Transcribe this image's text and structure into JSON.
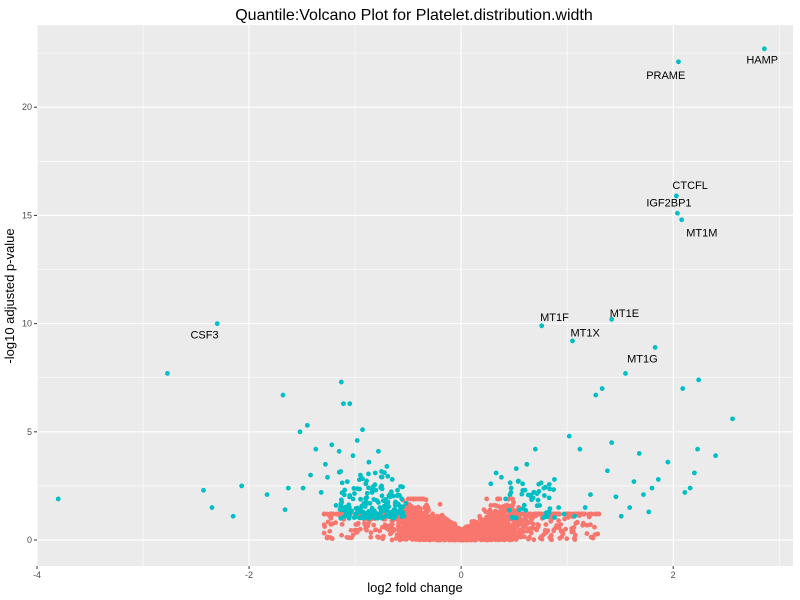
{
  "chart_data": {
    "type": "scatter",
    "title": "Quantile:Volcano Plot for Platelet.distribution.width",
    "xlabel": "log2 fold change",
    "ylabel": "-log10 adjusted p-value",
    "xlim": [
      -4.0,
      3.13
    ],
    "ylim": [
      -1.2,
      23.8
    ],
    "x_ticks": [
      -4,
      -2,
      0,
      2
    ],
    "x_tick_labels": [
      "-4",
      "-2",
      "0",
      "2"
    ],
    "y_ticks": [
      0,
      5,
      10,
      15,
      20
    ],
    "y_tick_labels": [
      "0",
      "5",
      "10",
      "15",
      "20"
    ],
    "grid": true,
    "legend": "none",
    "colors": {
      "significant": "#00BFC4",
      "not_significant": "#F8766D",
      "panel_background": "#EBEBEB",
      "grid": "#FFFFFF"
    },
    "labeled_points": [
      {
        "gene": "HAMP",
        "x": 2.86,
        "y": 22.7,
        "label_dx": -0.02,
        "label_dy": -0.5
      },
      {
        "gene": "PRAME",
        "x": 2.05,
        "y": 22.1,
        "label_dx": -0.12,
        "label_dy": -0.6
      },
      {
        "gene": "CTCFL",
        "x": 2.03,
        "y": 15.9,
        "label_dx": 0.13,
        "label_dy": 0.5
      },
      {
        "gene": "IGF2BP1",
        "x": 2.04,
        "y": 15.1,
        "label_dx": -0.08,
        "label_dy": 0.5
      },
      {
        "gene": "MT1M",
        "x": 2.08,
        "y": 14.8,
        "label_dx": 0.19,
        "label_dy": -0.6
      },
      {
        "gene": "CSF3",
        "x": -2.3,
        "y": 10.0,
        "label_dx": -0.12,
        "label_dy": -0.5
      },
      {
        "gene": "MT1F",
        "x": 0.76,
        "y": 9.9,
        "label_dx": 0.12,
        "label_dy": 0.4
      },
      {
        "gene": "MT1E",
        "x": 1.42,
        "y": 10.2,
        "label_dx": 0.12,
        "label_dy": 0.3
      },
      {
        "gene": "MT1X",
        "x": 1.05,
        "y": 9.2,
        "label_dx": 0.12,
        "label_dy": 0.4
      },
      {
        "gene": "MT1G",
        "x": 1.83,
        "y": 8.9,
        "label_dx": -0.12,
        "label_dy": -0.5
      }
    ],
    "significant_points": [
      {
        "x": -3.8,
        "y": 1.9
      },
      {
        "x": -2.77,
        "y": 7.7
      },
      {
        "x": -2.43,
        "y": 2.3
      },
      {
        "x": -2.35,
        "y": 1.5
      },
      {
        "x": -2.15,
        "y": 1.1
      },
      {
        "x": -2.07,
        "y": 2.5
      },
      {
        "x": -1.83,
        "y": 2.1
      },
      {
        "x": -1.68,
        "y": 6.7
      },
      {
        "x": -1.66,
        "y": 1.4
      },
      {
        "x": -1.63,
        "y": 2.4
      },
      {
        "x": -1.52,
        "y": 5.0
      },
      {
        "x": -1.49,
        "y": 2.4
      },
      {
        "x": -1.45,
        "y": 5.3
      },
      {
        "x": -1.42,
        "y": 3.0
      },
      {
        "x": -1.37,
        "y": 4.2
      },
      {
        "x": -1.32,
        "y": 2.2
      },
      {
        "x": -1.28,
        "y": 3.5
      },
      {
        "x": -1.26,
        "y": 2.9
      },
      {
        "x": -1.22,
        "y": 4.4
      },
      {
        "x": -1.18,
        "y": 1.6
      },
      {
        "x": -1.15,
        "y": 4.1
      },
      {
        "x": -1.13,
        "y": 7.3
      },
      {
        "x": -1.11,
        "y": 6.3
      },
      {
        "x": -1.05,
        "y": 6.3
      },
      {
        "x": -1.02,
        "y": 3.9
      },
      {
        "x": -0.98,
        "y": 4.6
      },
      {
        "x": -0.95,
        "y": 3.0
      },
      {
        "x": -0.93,
        "y": 5.1
      },
      {
        "x": -0.9,
        "y": 2.6
      },
      {
        "x": -0.87,
        "y": 3.6
      },
      {
        "x": -0.84,
        "y": 2.2
      },
      {
        "x": -0.81,
        "y": 3.1
      },
      {
        "x": -0.78,
        "y": 4.1
      },
      {
        "x": -0.75,
        "y": 2.5
      },
      {
        "x": -0.72,
        "y": 1.8
      },
      {
        "x": -0.7,
        "y": 3.4
      },
      {
        "x": -0.67,
        "y": 2.0
      },
      {
        "x": -0.65,
        "y": 2.8
      },
      {
        "x": -0.62,
        "y": 1.6
      },
      {
        "x": -0.6,
        "y": 2.3
      },
      {
        "x": -0.58,
        "y": 1.3
      },
      {
        "x": -0.56,
        "y": 1.9
      },
      {
        "x": -0.54,
        "y": 1.1
      },
      {
        "x": -0.52,
        "y": 1.7
      },
      {
        "x": 0.28,
        "y": 2.6
      },
      {
        "x": 0.33,
        "y": 3.1
      },
      {
        "x": 0.38,
        "y": 2.9
      },
      {
        "x": 0.42,
        "y": 1.9
      },
      {
        "x": 0.47,
        "y": 2.2
      },
      {
        "x": 0.52,
        "y": 3.3
      },
      {
        "x": 0.55,
        "y": 1.4
      },
      {
        "x": 0.58,
        "y": 2.6
      },
      {
        "x": 0.62,
        "y": 3.5
      },
      {
        "x": 0.66,
        "y": 2.0
      },
      {
        "x": 0.7,
        "y": 4.2
      },
      {
        "x": 0.74,
        "y": 1.6
      },
      {
        "x": 0.78,
        "y": 2.4
      },
      {
        "x": 0.83,
        "y": 1.3
      },
      {
        "x": 0.88,
        "y": 2.8
      },
      {
        "x": 0.92,
        "y": 1.5
      },
      {
        "x": 0.97,
        "y": 1.2
      },
      {
        "x": 1.02,
        "y": 4.8
      },
      {
        "x": 1.07,
        "y": 1.1
      },
      {
        "x": 1.12,
        "y": 4.2
      },
      {
        "x": 1.17,
        "y": 1.5
      },
      {
        "x": 1.22,
        "y": 2.1
      },
      {
        "x": 1.27,
        "y": 6.7
      },
      {
        "x": 1.33,
        "y": 7.0
      },
      {
        "x": 1.38,
        "y": 3.2
      },
      {
        "x": 1.42,
        "y": 4.5
      },
      {
        "x": 1.46,
        "y": 2.0
      },
      {
        "x": 1.51,
        "y": 1.1
      },
      {
        "x": 1.55,
        "y": 7.7
      },
      {
        "x": 1.59,
        "y": 1.5
      },
      {
        "x": 1.63,
        "y": 2.7
      },
      {
        "x": 1.68,
        "y": 4.0
      },
      {
        "x": 1.72,
        "y": 2.1
      },
      {
        "x": 1.77,
        "y": 1.3
      },
      {
        "x": 1.8,
        "y": 2.4
      },
      {
        "x": 1.86,
        "y": 2.8
      },
      {
        "x": 2.09,
        "y": 7.0
      },
      {
        "x": 2.11,
        "y": 2.2
      },
      {
        "x": 2.16,
        "y": 2.4
      },
      {
        "x": 2.2,
        "y": 3.1
      },
      {
        "x": 2.23,
        "y": 4.2
      },
      {
        "x": 2.24,
        "y": 7.4
      },
      {
        "x": 2.56,
        "y": 5.6
      },
      {
        "x": 2.4,
        "y": 3.9
      },
      {
        "x": 1.95,
        "y": 3.6
      }
    ]
  }
}
